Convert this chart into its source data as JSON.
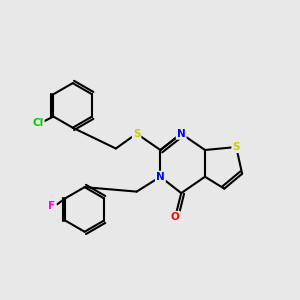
{
  "background_color": "#e8e8e8",
  "atom_colors": {
    "C": "#000000",
    "N": "#0000ff",
    "O": "#ff0000",
    "S": "#cccc00",
    "Cl": "#00cc00",
    "F": "#ff00ff"
  },
  "bond_color": "#000000",
  "bond_width": 1.5
}
